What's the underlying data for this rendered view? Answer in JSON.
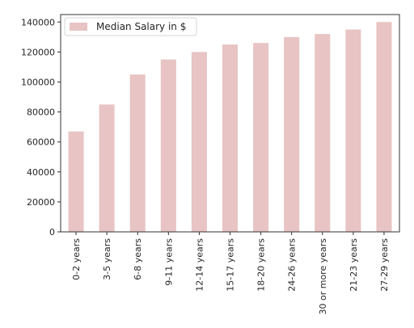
{
  "chart_data": {
    "type": "bar",
    "categories": [
      "0-2 years",
      "3-5 years",
      "6-8 years",
      "9-11 years",
      "12-14 years",
      "15-17 years",
      "18-20 years",
      "24-26 years",
      "30 or more years",
      "21-23 years",
      "27-29 years"
    ],
    "series": [
      {
        "name": "Median Salary in $",
        "values": [
          67000,
          85000,
          105000,
          115000,
          120000,
          125000,
          126000,
          130000,
          132000,
          135000,
          140000
        ]
      }
    ],
    "ylim": [
      0,
      145000
    ],
    "yticks": [
      0,
      20000,
      40000,
      60000,
      80000,
      100000,
      120000,
      140000
    ],
    "ytick_labels": [
      "0",
      "20000",
      "40000",
      "60000",
      "80000",
      "100000",
      "120000",
      "140000"
    ],
    "bar_color": "#e8c4c4",
    "legend_position": "top-left",
    "grid": false
  }
}
